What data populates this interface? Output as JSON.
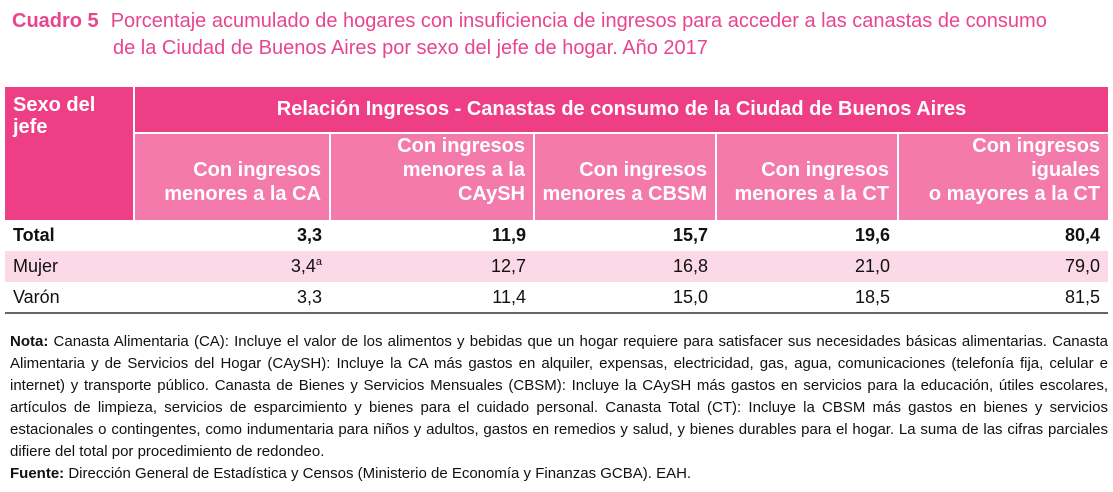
{
  "title": {
    "label": "Cuadro 5",
    "line1": "Porcentaje acumulado de hogares con insuficiencia de ingresos para acceder a las canastas de consumo",
    "line2": "de la Ciudad de Buenos Aires por sexo del jefe de hogar. Año 2017"
  },
  "table": {
    "first_header": "Sexo del jefe",
    "group_header": "Relación Ingresos - Canastas de consumo de la Ciudad de Buenos Aires",
    "columns": [
      {
        "line1": "Con ingresos",
        "line2": "menores a la CA"
      },
      {
        "line1": "Con ingresos",
        "line2": "menores a la CAySH"
      },
      {
        "line1": "Con ingresos",
        "line2": "menores a CBSM"
      },
      {
        "line1": "Con ingresos",
        "line2": "menores a la CT"
      },
      {
        "line1": "Con ingresos iguales",
        "line2": "o mayores a la CT"
      }
    ],
    "rows": [
      {
        "label": "Total",
        "values": [
          "3,3",
          "11,9",
          "15,7",
          "19,6",
          "80,4"
        ]
      },
      {
        "label": "Mujer",
        "values": [
          "3,4",
          "12,7",
          "16,8",
          "21,0",
          "79,0"
        ],
        "note": "a"
      },
      {
        "label": "Varón",
        "values": [
          "3,3",
          "11,4",
          "15,0",
          "18,5",
          "81,5"
        ]
      }
    ]
  },
  "notes": {
    "nota_label": "Nota:",
    "nota_text": "Canasta Alimentaria (CA): Incluye el valor de los alimentos y bebidas que un hogar requiere para satisfacer sus necesidades básicas alimentarias. Canasta Alimentaria y de Servicios del Hogar (CAySH): Incluye la CA más gastos en alquiler, expensas, electricidad, gas, agua, comunicaciones (telefonía fija, celular e internet) y transporte público. Canasta de Bienes y Servicios Mensuales (CBSM): Incluye la CAySH más gastos en servicios para la educación, útiles escolares, artículos de limpieza, servicios de esparcimiento y bienes para el cuidado personal. Canasta Total (CT): Incluye la CBSM más gastos en bienes y servicios estacionales o contingentes, como indumentaria para niños y adultos, gastos en remedios y salud, y bienes durables para el hogar. La suma de las cifras parciales difiere del total por procedimiento de redondeo.",
    "fuente_label": "Fuente:",
    "fuente_text": "Dirección General de Estadística y Censos (Ministerio de Economía y Finanzas GCBA). EAH."
  },
  "colors": {
    "accent": "#ee3f86",
    "header_light": "#f47aab",
    "row_highlight": "#fbd9e7"
  }
}
